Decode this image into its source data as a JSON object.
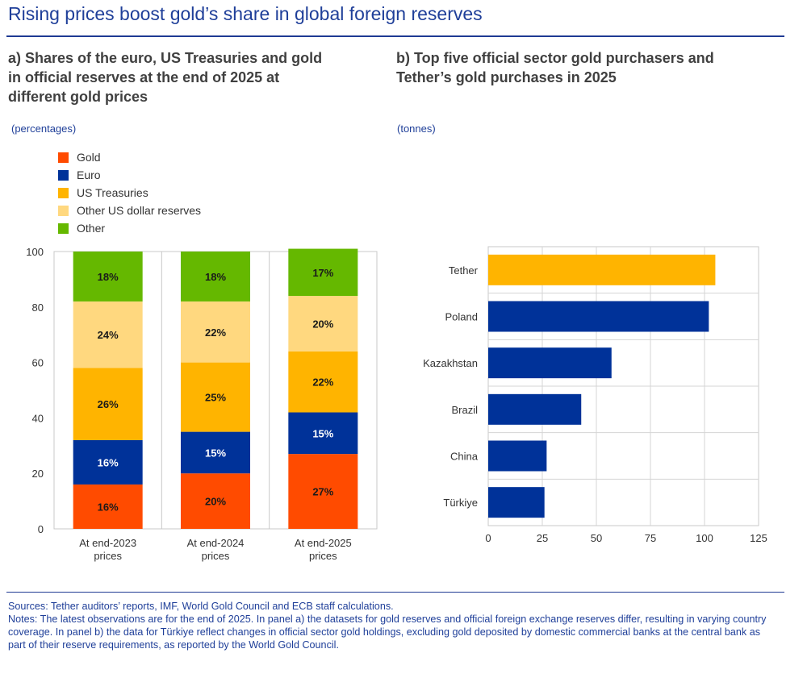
{
  "title": "Rising prices boost gold’s share in global foreign reserves",
  "panel_a": {
    "title_lines": [
      "a) Shares of the euro, US Treasuries and gold",
      "in official reserves at the end of 2025 at",
      "different gold prices"
    ],
    "unit": "(percentages)"
  },
  "panel_b": {
    "title_lines": [
      "b) Top five official sector gold purchasers and",
      "Tether’s gold purchases in 2025"
    ],
    "unit": "(tonnes)"
  },
  "colors": {
    "gold": "#ff4b00",
    "euro": "#003299",
    "us_treasuries": "#ffb400",
    "other_usd": "#ffd87f",
    "other": "#65b800",
    "tether": "#ffb400",
    "country": "#003299"
  },
  "chart_data": [
    {
      "type": "bar",
      "stacked": true,
      "categories": [
        [
          "At end-2023",
          "prices"
        ],
        [
          "At end-2024",
          "prices"
        ],
        [
          "At end-2025",
          "prices"
        ]
      ],
      "series": [
        {
          "name": "Gold",
          "color_key": "gold",
          "values": [
            16,
            20,
            27
          ],
          "labels": [
            "16%",
            "20%",
            "27%"
          ]
        },
        {
          "name": "Euro",
          "color_key": "euro",
          "values": [
            16,
            15,
            15
          ],
          "labels": [
            "16%",
            "15%",
            "15%"
          ]
        },
        {
          "name": "US Treasuries",
          "color_key": "us_treasuries",
          "values": [
            26,
            25,
            22
          ],
          "labels": [
            "26%",
            "25%",
            "22%"
          ]
        },
        {
          "name": "Other US dollar reserves",
          "color_key": "other_usd",
          "values": [
            24,
            22,
            20
          ],
          "labels": [
            "24%",
            "22%",
            "20%"
          ]
        },
        {
          "name": "Other",
          "color_key": "other",
          "values": [
            18,
            18,
            17
          ],
          "labels": [
            "18%",
            "18%",
            "17%"
          ]
        }
      ],
      "ylim": [
        0,
        100
      ],
      "yticks": [
        0,
        20,
        40,
        60,
        80,
        100
      ],
      "legend": "top-left"
    },
    {
      "type": "bar",
      "orientation": "horizontal",
      "categories": [
        "Tether",
        "Poland",
        "Kazakhstan",
        "Brazil",
        "China",
        "Türkiye"
      ],
      "values": [
        105,
        102,
        57,
        43,
        27,
        26
      ],
      "color_keys": [
        "tether",
        "country",
        "country",
        "country",
        "country",
        "country"
      ],
      "xlim": [
        0,
        125
      ],
      "xticks": [
        0,
        25,
        50,
        75,
        100,
        125
      ],
      "grid": true
    }
  ],
  "footer": {
    "sources": "Sources: Tether auditors’ reports, IMF, World Gold Council and ECB staff calculations.",
    "notes": "Notes: The latest observations are for the end of 2025. In panel a) the datasets for gold reserves and official foreign exchange reserves differ, resulting in varying country coverage. In panel b) the data for Türkiye reflect changes in official sector gold holdings, excluding gold deposited by domestic commercial banks at the central bank as part of their reserve requirements, as reported by the World Gold Council."
  }
}
